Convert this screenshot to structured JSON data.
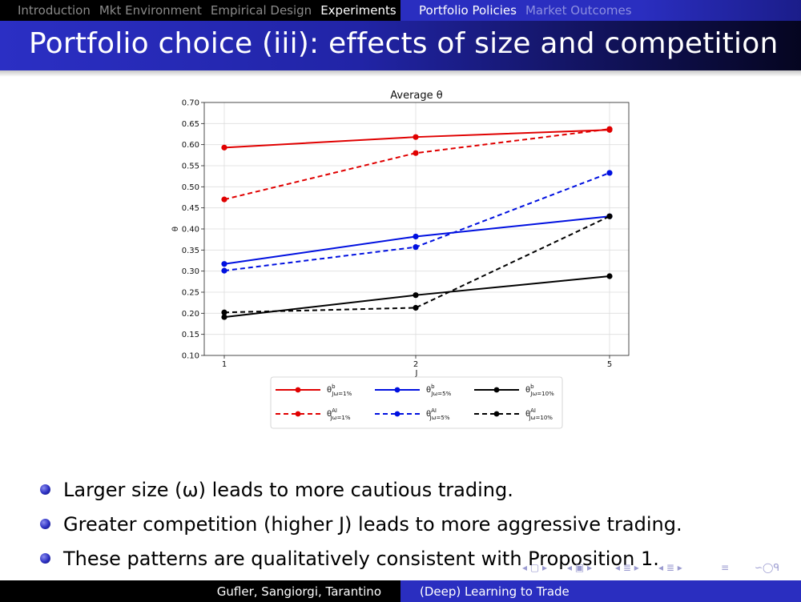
{
  "nav": {
    "sections_left": [
      "Introduction",
      "Mkt Environment",
      "Empirical Design",
      "Experiments"
    ],
    "sections_right": [
      "Portfolio Policies",
      "Market Outcomes"
    ]
  },
  "slide": {
    "title": "Portfolio choice (iii): effects of size and competition",
    "bullets": [
      "Larger size (ω) leads to more cautious trading.",
      "Greater competition (higher J) leads to more aggressive trading.",
      "These patterns are qualitatively consistent with Proposition 1."
    ]
  },
  "footer": {
    "authors": "Gufler, Sangiorgi, Tarantino",
    "talk_title": "(Deep) Learning to Trade"
  },
  "icons": [
    "nav-frame-left-icon",
    "nav-frame-right-icon",
    "nav-subsection-icon",
    "nav-section-icon",
    "nav-align-icon",
    "search-icon"
  ],
  "colors": {
    "accent": "#2a2ec0",
    "red": "#e00000",
    "blue": "#0010e0",
    "black": "#000000"
  },
  "chart_data": {
    "type": "line",
    "title": "Average θ",
    "xlabel": "J",
    "ylabel": "θ",
    "x": [
      1,
      2,
      5
    ],
    "x_tick_labels": [
      "1",
      "2",
      "5"
    ],
    "ylim": [
      0.1,
      0.7
    ],
    "y_ticks": [
      "0.10",
      "0.15",
      "0.20",
      "0.25",
      "0.30",
      "0.35",
      "0.40",
      "0.45",
      "0.50",
      "0.55",
      "0.60",
      "0.65",
      "0.70"
    ],
    "grid": true,
    "legend_position": "bottom",
    "series": [
      {
        "name": "θ^b_{Jω=1%}",
        "label_sup": "b",
        "label_sub": "Jω=1%",
        "color": "#e00000",
        "dashed": false,
        "values": [
          0.593,
          0.618,
          0.635
        ]
      },
      {
        "name": "θ^b_{Jω=5%}",
        "label_sup": "b",
        "label_sub": "Jω=5%",
        "color": "#0010e0",
        "dashed": false,
        "values": [
          0.317,
          0.382,
          0.43
        ]
      },
      {
        "name": "θ^b_{Jω=10%}",
        "label_sup": "b",
        "label_sub": "Jω=10%",
        "color": "#000000",
        "dashed": false,
        "values": [
          0.191,
          0.243,
          0.288
        ]
      },
      {
        "name": "θ^AI_{Jω=1%}",
        "label_sup": "AI",
        "label_sub": "Jω=1%",
        "color": "#e00000",
        "dashed": true,
        "values": [
          0.47,
          0.58,
          0.637
        ]
      },
      {
        "name": "θ^AI_{Jω=5%}",
        "label_sup": "AI",
        "label_sub": "Jω=5%",
        "color": "#0010e0",
        "dashed": true,
        "values": [
          0.301,
          0.357,
          0.533
        ]
      },
      {
        "name": "θ^AI_{Jω=10%}",
        "label_sup": "AI",
        "label_sub": "Jω=10%",
        "color": "#000000",
        "dashed": true,
        "values": [
          0.202,
          0.213,
          0.43
        ]
      }
    ]
  }
}
